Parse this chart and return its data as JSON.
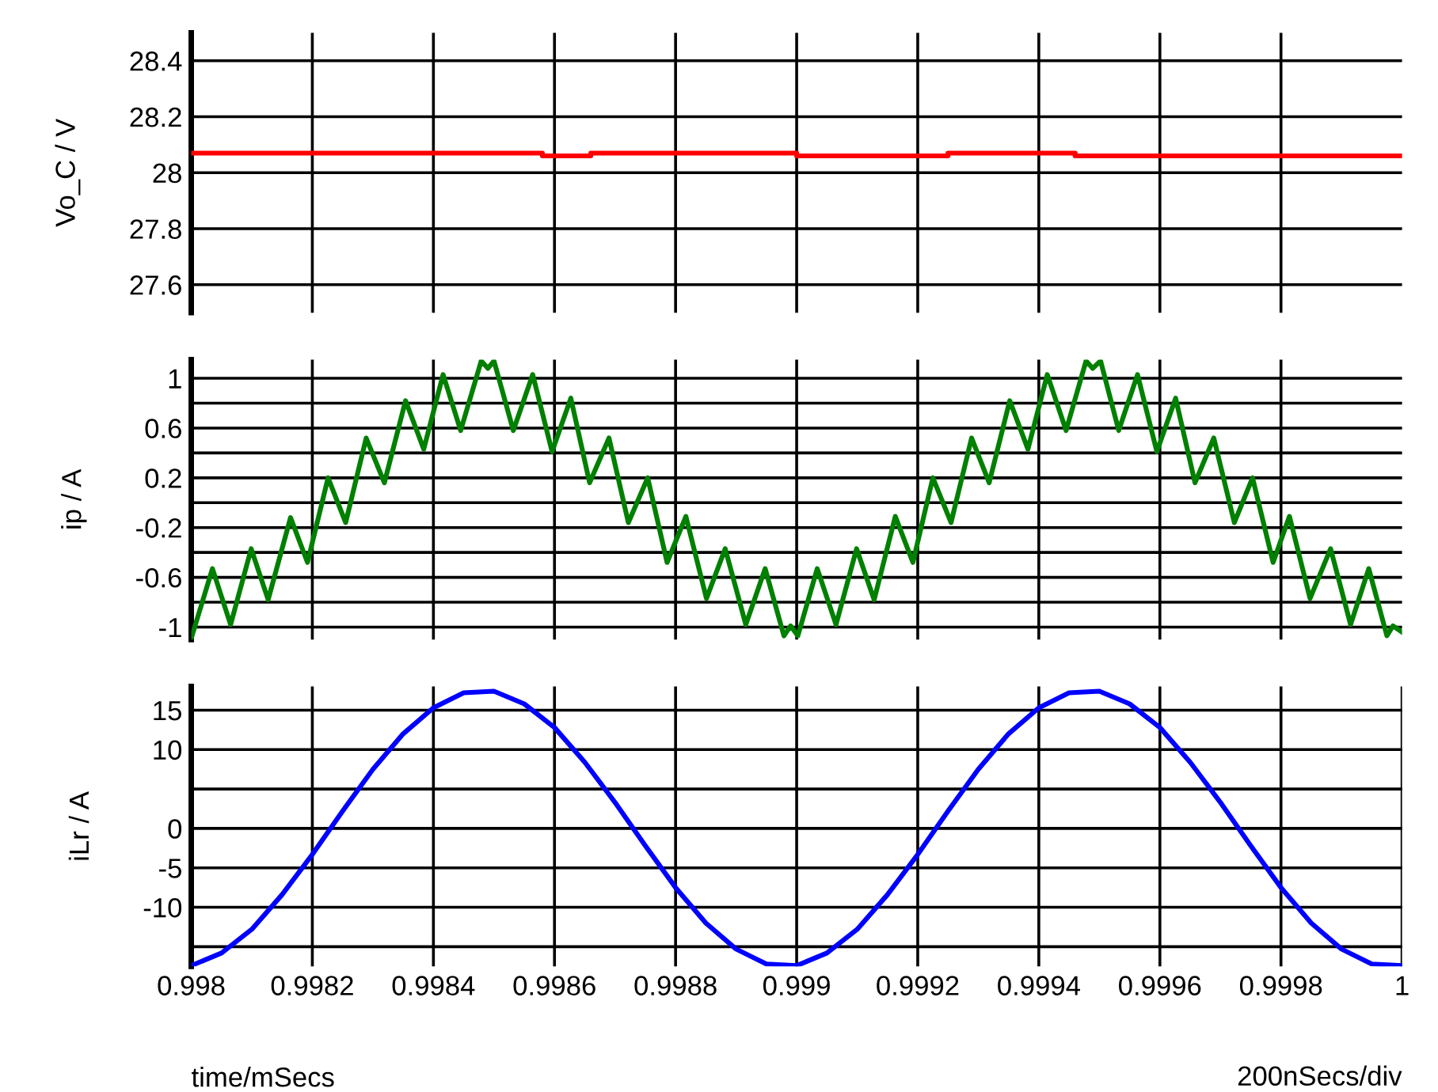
{
  "chart_data": [
    {
      "type": "line",
      "ylabel": "Vo_C / V",
      "xlim": [
        0.998,
        1.0
      ],
      "ylim": [
        27.5,
        28.5
      ],
      "yticks": [
        27.6,
        27.8,
        {
          "value": 28,
          "label": "28"
        },
        28.2,
        28.4
      ],
      "xticks": [
        0.998,
        0.9982,
        0.9984,
        0.9986,
        0.9988,
        0.999,
        0.9992,
        0.9994,
        0.9996,
        0.9998
      ],
      "grid": true,
      "tick_labels": "y",
      "x": [
        0.998,
        0.99858,
        0.99858,
        0.99866,
        0.99866,
        0.999,
        0.999,
        0.99925,
        0.99925,
        0.99946,
        0.99946,
        1.0
      ],
      "series": [
        {
          "color": "#ff0000",
          "values": [
            28.07,
            28.07,
            28.06,
            28.06,
            28.07,
            28.07,
            28.06,
            28.06,
            28.07,
            28.07,
            28.06,
            28.06
          ]
        }
      ]
    },
    {
      "type": "line",
      "ylabel": "ip / A",
      "xlim": [
        0.998,
        1.0
      ],
      "ylim": [
        -1.1,
        1.15
      ],
      "yticks": [
        {
          "value": -1,
          "label": "-1"
        },
        {
          "value": -0.8,
          "label": null
        },
        -0.6,
        {
          "value": -0.4,
          "label": null
        },
        -0.2,
        {
          "value": 0,
          "label": null
        },
        0.2,
        {
          "value": 0.4,
          "label": null
        },
        0.6,
        {
          "value": 0.8,
          "label": null
        },
        {
          "value": 1,
          "label": "1"
        }
      ],
      "xticks": [
        0.998,
        0.9982,
        0.9984,
        0.9986,
        0.9988,
        0.999,
        0.9992,
        0.9994,
        0.9996,
        0.9998
      ],
      "grid": true,
      "tick_labels": "y",
      "x": [
        0.998,
        0.998035,
        0.998065,
        0.998099,
        0.998127,
        0.998164,
        0.998192,
        0.998226,
        0.998255,
        0.998289,
        0.998319,
        0.998354,
        0.998384,
        0.998416,
        0.998445,
        0.998479,
        0.99849,
        0.9985,
        0.998532,
        0.998564,
        0.998596,
        0.998627,
        0.998658,
        0.99869,
        0.998722,
        0.998754,
        0.998786,
        0.998817,
        0.998851,
        0.998882,
        0.998916,
        0.998948,
        0.998979,
        0.99899,
        0.999002,
        0.999034,
        0.999065,
        0.999099,
        0.999128,
        0.999163,
        0.999192,
        0.999225,
        0.999255,
        0.999289,
        0.999318,
        0.999352,
        0.999382,
        0.999414,
        0.999445,
        0.999478,
        0.999489,
        0.999502,
        0.999532,
        0.999563,
        0.999595,
        0.999626,
        0.999658,
        0.999689,
        0.999723,
        0.999753,
        0.999787,
        0.999814,
        0.999848,
        0.999882,
        0.999915,
        0.999945,
        0.999975,
        0.999985,
        1.0
      ],
      "series": [
        {
          "color": "#008000",
          "values": [
            -1.09,
            -0.53,
            -0.98,
            -0.37,
            -0.78,
            -0.12,
            -0.48,
            0.2,
            -0.16,
            0.52,
            0.16,
            0.82,
            0.43,
            1.03,
            0.58,
            1.14,
            1.08,
            1.14,
            0.58,
            1.03,
            0.41,
            0.84,
            0.16,
            0.52,
            -0.16,
            0.2,
            -0.48,
            -0.11,
            -0.77,
            -0.37,
            -0.98,
            -0.53,
            -1.07,
            -0.99,
            -1.07,
            -0.53,
            -0.98,
            -0.37,
            -0.78,
            -0.11,
            -0.48,
            0.2,
            -0.16,
            0.52,
            0.16,
            0.82,
            0.43,
            1.03,
            0.58,
            1.14,
            1.08,
            1.14,
            0.58,
            1.03,
            0.41,
            0.84,
            0.16,
            0.52,
            -0.16,
            0.2,
            -0.48,
            -0.11,
            -0.77,
            -0.37,
            -0.98,
            -0.53,
            -1.07,
            -0.99,
            -1.04
          ]
        }
      ]
    },
    {
      "type": "line",
      "ylabel": "iLr / A",
      "xlabel": "time/mSecs",
      "annotations": [
        "200nSecs/div"
      ],
      "xlim": [
        0.998,
        1.0
      ],
      "ylim": [
        -17.5,
        18
      ],
      "yticks": [
        {
          "value": -15,
          "label": null
        },
        -10,
        -5,
        0,
        {
          "value": 5,
          "label": null
        },
        10,
        15
      ],
      "xticks": [
        0.998,
        0.9982,
        0.9984,
        0.9986,
        0.9988,
        0.999,
        0.9992,
        0.9994,
        0.9996,
        0.9998,
        {
          "value": 1.0,
          "label": "1"
        }
      ],
      "grid": true,
      "x": [
        0.998,
        0.99805,
        0.9981,
        0.99815,
        0.9982,
        0.99825,
        0.9983,
        0.99835,
        0.9984,
        0.99845,
        0.9985,
        0.99855,
        0.9986,
        0.99865,
        0.9987,
        0.99875,
        0.9988,
        0.99885,
        0.9989,
        0.99895,
        0.999,
        0.99905,
        0.9991,
        0.99915,
        0.9992,
        0.99925,
        0.9993,
        0.99935,
        0.9994,
        0.99945,
        0.9995,
        0.99955,
        0.9996,
        0.99965,
        0.9997,
        0.99975,
        0.9998,
        0.99985,
        0.9999,
        0.99995,
        1.0
      ],
      "series": [
        {
          "color": "#0000ff",
          "values": [
            -17.4,
            -15.8,
            -12.8,
            -8.4,
            -3.3,
            2.2,
            7.5,
            12.0,
            15.3,
            17.2,
            17.4,
            15.8,
            12.8,
            8.4,
            3.3,
            -2.2,
            -7.5,
            -12.0,
            -15.3,
            -17.2,
            -17.4,
            -15.8,
            -12.8,
            -8.4,
            -3.3,
            2.2,
            7.5,
            12.0,
            15.3,
            17.2,
            17.4,
            15.8,
            12.8,
            8.4,
            3.3,
            -2.2,
            -7.5,
            -12.0,
            -15.3,
            -17.2,
            -17.4
          ]
        }
      ]
    }
  ]
}
